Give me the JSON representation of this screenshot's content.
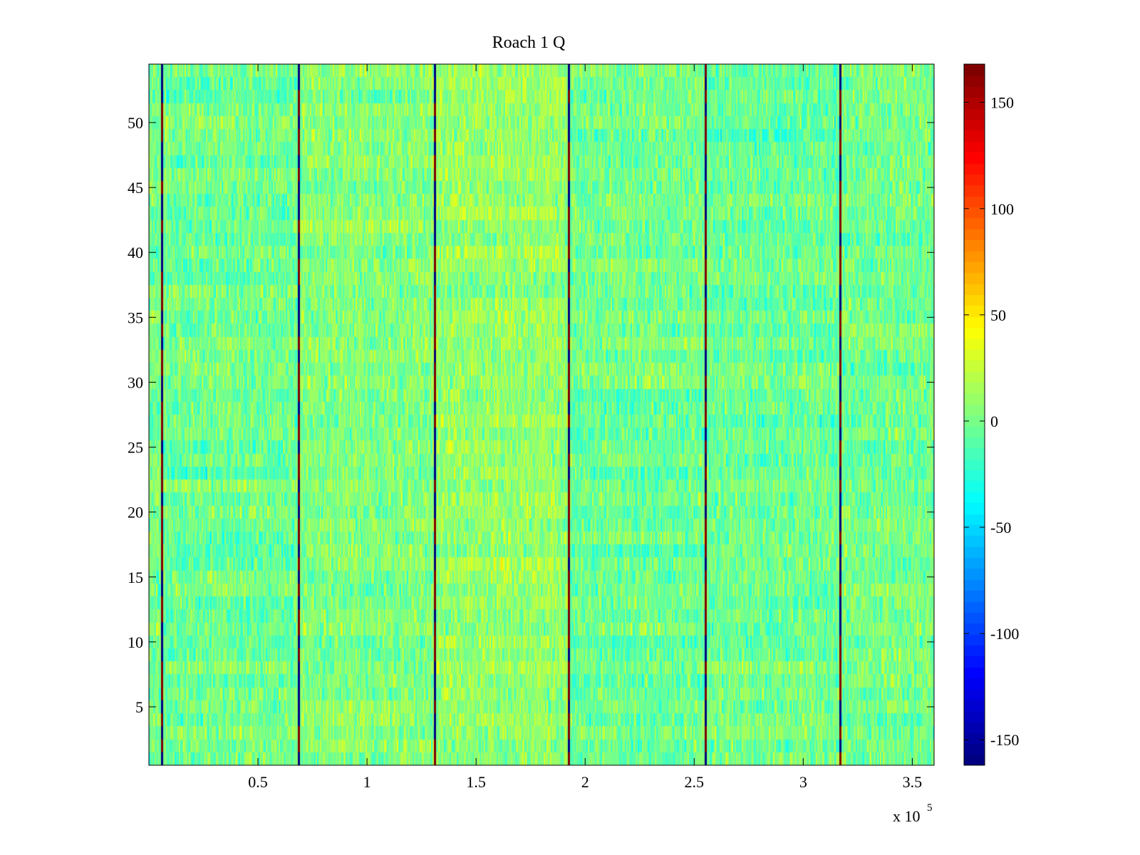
{
  "chart_data": {
    "type": "heatmap",
    "title": "Roach 1 Q",
    "xlabel": "",
    "ylabel": "",
    "x_multiplier_label": "x 10",
    "x_multiplier_exponent": "5",
    "xlim": [
      0,
      3.6
    ],
    "ylim": [
      0.5,
      54.5
    ],
    "x_ticks": [
      0.5,
      1,
      1.5,
      2,
      2.5,
      3,
      3.5
    ],
    "x_tick_labels": [
      "0.5",
      "1",
      "1.5",
      "2",
      "2.5",
      "3",
      "3.5"
    ],
    "y_ticks": [
      5,
      10,
      15,
      20,
      25,
      30,
      35,
      40,
      45,
      50
    ],
    "y_tick_labels": [
      "5",
      "10",
      "15",
      "20",
      "25",
      "30",
      "35",
      "40",
      "45",
      "50"
    ],
    "rows": 54,
    "colormap": "jet",
    "colorbar": {
      "range": [
        -162,
        168
      ],
      "ticks": [
        -150,
        -100,
        -50,
        0,
        50,
        100,
        150
      ],
      "tick_labels": [
        "-150",
        "-100",
        "-50",
        "0",
        "50",
        "100",
        "150"
      ]
    },
    "background_level": 0,
    "noise_amplitude": 20,
    "segment_boundaries_x": [
      0.06,
      0.685,
      1.31,
      1.925,
      2.55,
      3.17
    ],
    "boundary_values": {
      "low": -160,
      "high": 165
    },
    "segment_mean_levels": [
      {
        "x_range": [
          0,
          0.06
        ],
        "level": 0
      },
      {
        "x_range": [
          0.06,
          0.685
        ],
        "level": -2
      },
      {
        "x_range": [
          0.685,
          1.31
        ],
        "level": 4
      },
      {
        "x_range": [
          1.31,
          1.925
        ],
        "level": 10
      },
      {
        "x_range": [
          1.925,
          2.55
        ],
        "level": -2
      },
      {
        "x_range": [
          2.55,
          3.17
        ],
        "level": -3
      },
      {
        "x_range": [
          3.17,
          3.6
        ],
        "level": 0
      }
    ]
  }
}
